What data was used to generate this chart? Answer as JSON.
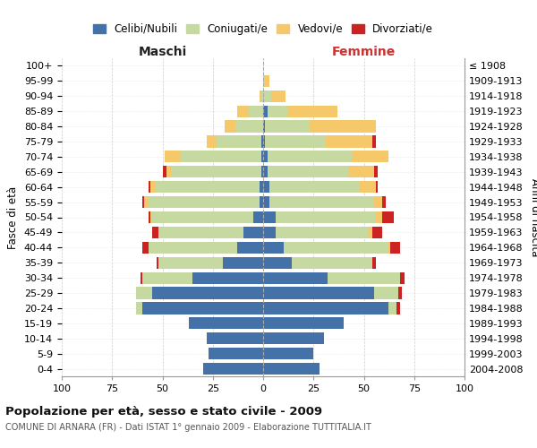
{
  "age_groups": [
    "0-4",
    "5-9",
    "10-14",
    "15-19",
    "20-24",
    "25-29",
    "30-34",
    "35-39",
    "40-44",
    "45-49",
    "50-54",
    "55-59",
    "60-64",
    "65-69",
    "70-74",
    "75-79",
    "80-84",
    "85-89",
    "90-94",
    "95-99",
    "100+"
  ],
  "birth_years": [
    "2004-2008",
    "1999-2003",
    "1994-1998",
    "1989-1993",
    "1984-1988",
    "1979-1983",
    "1974-1978",
    "1969-1973",
    "1964-1968",
    "1959-1963",
    "1954-1958",
    "1949-1953",
    "1944-1948",
    "1939-1943",
    "1934-1938",
    "1929-1933",
    "1924-1928",
    "1919-1923",
    "1914-1918",
    "1909-1913",
    "≤ 1908"
  ],
  "male_celibi": [
    30,
    27,
    28,
    37,
    60,
    55,
    35,
    20,
    13,
    10,
    5,
    2,
    2,
    1,
    1,
    1,
    0,
    0,
    0,
    0,
    0
  ],
  "male_coniugati": [
    0,
    0,
    0,
    0,
    3,
    8,
    25,
    32,
    44,
    42,
    50,
    55,
    52,
    45,
    40,
    22,
    14,
    7,
    1,
    0,
    0
  ],
  "male_vedovi": [
    0,
    0,
    0,
    0,
    0,
    0,
    0,
    0,
    0,
    0,
    1,
    2,
    2,
    2,
    8,
    5,
    5,
    6,
    1,
    0,
    0
  ],
  "male_divorziati": [
    0,
    0,
    0,
    0,
    0,
    0,
    1,
    1,
    3,
    3,
    1,
    1,
    1,
    2,
    0,
    0,
    0,
    0,
    0,
    0,
    0
  ],
  "fem_nubili": [
    28,
    25,
    30,
    40,
    62,
    55,
    32,
    14,
    10,
    6,
    6,
    3,
    3,
    2,
    2,
    1,
    1,
    2,
    0,
    0,
    0
  ],
  "fem_coniugate": [
    0,
    0,
    0,
    0,
    4,
    12,
    36,
    40,
    52,
    46,
    50,
    52,
    45,
    40,
    42,
    30,
    22,
    10,
    4,
    1,
    0
  ],
  "fem_vedove": [
    0,
    0,
    0,
    0,
    0,
    0,
    0,
    0,
    1,
    2,
    3,
    4,
    8,
    13,
    18,
    23,
    33,
    25,
    7,
    2,
    0
  ],
  "fem_divorziate": [
    0,
    0,
    0,
    0,
    2,
    2,
    2,
    2,
    5,
    5,
    6,
    2,
    1,
    2,
    0,
    2,
    0,
    0,
    0,
    0,
    0
  ],
  "colors": {
    "celibi": "#4472a8",
    "coniugati": "#c5d9a0",
    "vedovi": "#f5c96a",
    "divorziati": "#cc2222"
  },
  "xlim": 100,
  "title": "Popolazione per età, sesso e stato civile - 2009",
  "subtitle": "COMUNE DI ARNARA (FR) - Dati ISTAT 1° gennaio 2009 - Elaborazione TUTTITALIA.IT",
  "maschi_label": "Maschi",
  "femmine_label": "Femmine",
  "ylabel_left": "Fasce di età",
  "ylabel_right": "Anni di nascita",
  "legend_labels": [
    "Celibi/Nubili",
    "Coniugati/e",
    "Vedovi/e",
    "Divorziati/e"
  ]
}
